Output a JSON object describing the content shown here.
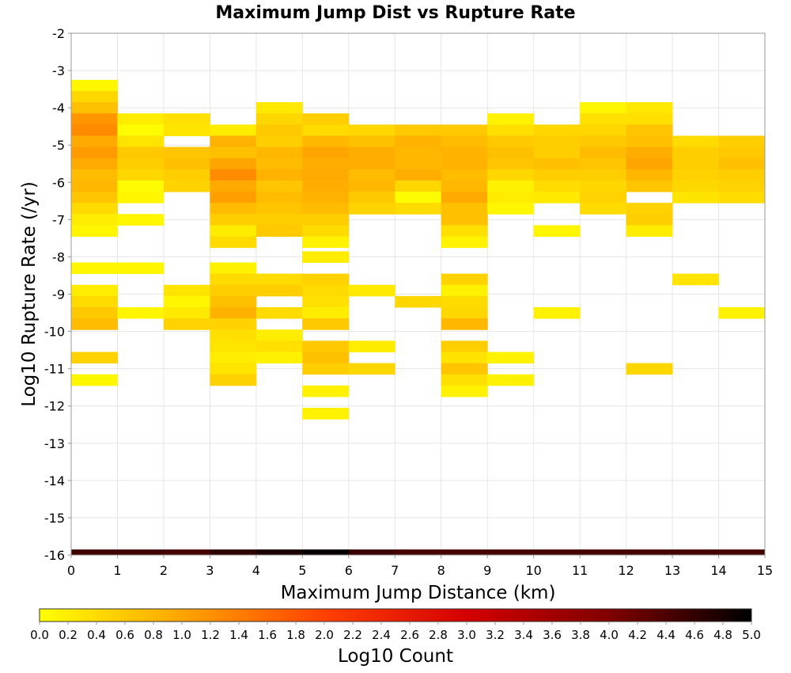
{
  "chart_data": {
    "type": "heatmap",
    "title": "Maximum Jump Dist vs Rupture Rate",
    "xlabel": "Maximum Jump Distance (km)",
    "ylabel": "Log10 Rupture Rate (/yr)",
    "xlim": [
      0,
      15
    ],
    "ylim": [
      -16,
      -2
    ],
    "x_ticks": [
      "0",
      "1",
      "2",
      "3",
      "4",
      "5",
      "6",
      "7",
      "8",
      "9",
      "10",
      "11",
      "12",
      "13",
      "14",
      "15"
    ],
    "y_ticks": [
      "-2",
      "-3",
      "-4",
      "-5",
      "-6",
      "-7",
      "-8",
      "-9",
      "-10",
      "-11",
      "-12",
      "-13",
      "-14",
      "-15",
      "-16"
    ],
    "x_bin_width": 1,
    "y_bin_width": 0.3,
    "grid": true,
    "colorbar": {
      "label": "Log10 Count",
      "range": [
        0,
        5
      ],
      "ticks": [
        "0.0",
        "0.2",
        "0.4",
        "0.6",
        "0.8",
        "1.0",
        "1.2",
        "1.4",
        "1.6",
        "1.8",
        "2.0",
        "2.2",
        "2.4",
        "2.6",
        "2.8",
        "3.0",
        "3.2",
        "3.4",
        "3.6",
        "3.8",
        "4.0",
        "4.2",
        "4.4",
        "4.6",
        "4.8",
        "5.0"
      ],
      "colors": [
        "#ffff00",
        "#ffa500",
        "#ff4000",
        "#d40000",
        "#800000",
        "#000000"
      ]
    },
    "cells": [
      [
        0,
        -3.4,
        0.1
      ],
      [
        0,
        -3.7,
        0.45
      ],
      [
        0,
        -4.0,
        0.7
      ],
      [
        0,
        -4.3,
        1.15
      ],
      [
        0,
        -4.6,
        1.25
      ],
      [
        0,
        -4.9,
        0.95
      ],
      [
        0,
        -5.2,
        1.1
      ],
      [
        0,
        -5.5,
        0.95
      ],
      [
        0,
        -5.8,
        0.75
      ],
      [
        0,
        -6.1,
        0.8
      ],
      [
        0,
        -6.4,
        0.65
      ],
      [
        0,
        -6.7,
        0.4
      ],
      [
        0,
        -7.0,
        0.2
      ],
      [
        0,
        -7.3,
        0.1
      ],
      [
        0,
        -8.3,
        0.1
      ],
      [
        0,
        -8.9,
        0.2
      ],
      [
        0,
        -9.2,
        0.4
      ],
      [
        0,
        -9.5,
        0.6
      ],
      [
        0,
        -9.8,
        0.75
      ],
      [
        0,
        -10.7,
        0.5
      ],
      [
        0,
        -11.3,
        0.1
      ],
      [
        1,
        -4.3,
        0.2
      ],
      [
        1,
        -4.6,
        0.05
      ],
      [
        1,
        -4.9,
        0.3
      ],
      [
        1,
        -5.2,
        0.6
      ],
      [
        1,
        -5.5,
        0.55
      ],
      [
        1,
        -5.8,
        0.45
      ],
      [
        1,
        -6.1,
        0.05
      ],
      [
        1,
        -6.4,
        0.1
      ],
      [
        1,
        -7.0,
        0.1
      ],
      [
        1,
        -8.3,
        0.1
      ],
      [
        1,
        -9.5,
        0.1
      ],
      [
        2,
        -4.3,
        0.35
      ],
      [
        2,
        -4.6,
        0.3
      ],
      [
        2,
        -5.2,
        0.65
      ],
      [
        2,
        -5.5,
        0.7
      ],
      [
        2,
        -5.8,
        0.55
      ],
      [
        2,
        -6.1,
        0.5
      ],
      [
        2,
        -8.9,
        0.3
      ],
      [
        2,
        -9.2,
        0.1
      ],
      [
        2,
        -9.5,
        0.25
      ],
      [
        2,
        -9.8,
        0.5
      ],
      [
        3,
        -4.6,
        0.2
      ],
      [
        3,
        -4.9,
        0.85
      ],
      [
        3,
        -5.2,
        0.7
      ],
      [
        3,
        -5.5,
        1.0
      ],
      [
        3,
        -5.8,
        1.25
      ],
      [
        3,
        -6.1,
        0.95
      ],
      [
        3,
        -6.4,
        1.05
      ],
      [
        3,
        -6.7,
        0.75
      ],
      [
        3,
        -7.0,
        0.55
      ],
      [
        3,
        -7.3,
        0.2
      ],
      [
        3,
        -7.6,
        0.4
      ],
      [
        3,
        -8.3,
        0.15
      ],
      [
        3,
        -8.6,
        0.4
      ],
      [
        3,
        -8.9,
        0.55
      ],
      [
        3,
        -9.2,
        0.7
      ],
      [
        3,
        -9.5,
        0.85
      ],
      [
        3,
        -9.8,
        0.5
      ],
      [
        3,
        -10.1,
        0.35
      ],
      [
        3,
        -10.4,
        0.3
      ],
      [
        3,
        -10.7,
        0.2
      ],
      [
        3,
        -11.0,
        0.3
      ],
      [
        3,
        -11.3,
        0.5
      ],
      [
        4,
        -4.0,
        0.25
      ],
      [
        4,
        -4.3,
        0.45
      ],
      [
        4,
        -4.6,
        0.6
      ],
      [
        4,
        -4.9,
        0.55
      ],
      [
        4,
        -5.2,
        0.8
      ],
      [
        4,
        -5.5,
        0.75
      ],
      [
        4,
        -5.8,
        0.85
      ],
      [
        4,
        -6.1,
        0.65
      ],
      [
        4,
        -6.4,
        0.75
      ],
      [
        4,
        -6.7,
        0.65
      ],
      [
        4,
        -7.0,
        0.55
      ],
      [
        4,
        -7.3,
        0.6
      ],
      [
        4,
        -8.6,
        0.4
      ],
      [
        4,
        -8.9,
        0.55
      ],
      [
        4,
        -9.5,
        0.4
      ],
      [
        4,
        -10.1,
        0.2
      ],
      [
        4,
        -10.4,
        0.35
      ],
      [
        4,
        -10.7,
        0.15
      ],
      [
        5,
        -4.3,
        0.55
      ],
      [
        5,
        -4.6,
        0.4
      ],
      [
        5,
        -4.9,
        0.8
      ],
      [
        5,
        -5.2,
        1.0
      ],
      [
        5,
        -5.5,
        0.9
      ],
      [
        5,
        -5.8,
        0.95
      ],
      [
        5,
        -6.1,
        0.9
      ],
      [
        5,
        -6.4,
        0.85
      ],
      [
        5,
        -6.7,
        0.75
      ],
      [
        5,
        -7.0,
        0.55
      ],
      [
        5,
        -7.3,
        0.4
      ],
      [
        5,
        -7.6,
        0.15
      ],
      [
        5,
        -8.0,
        0.2
      ],
      [
        5,
        -8.6,
        0.5
      ],
      [
        5,
        -8.9,
        0.4
      ],
      [
        5,
        -9.2,
        0.35
      ],
      [
        5,
        -9.5,
        0.2
      ],
      [
        5,
        -9.8,
        0.6
      ],
      [
        5,
        -10.4,
        0.6
      ],
      [
        5,
        -10.7,
        0.7
      ],
      [
        5,
        -11.0,
        0.55
      ],
      [
        5,
        -11.6,
        0.15
      ],
      [
        5,
        -12.2,
        0.15
      ],
      [
        6,
        -4.6,
        0.45
      ],
      [
        6,
        -4.9,
        0.7
      ],
      [
        6,
        -5.2,
        0.9
      ],
      [
        6,
        -5.5,
        0.9
      ],
      [
        6,
        -5.8,
        0.75
      ],
      [
        6,
        -6.1,
        0.8
      ],
      [
        6,
        -6.4,
        0.6
      ],
      [
        6,
        -6.7,
        0.5
      ],
      [
        6,
        -8.9,
        0.25
      ],
      [
        6,
        -10.4,
        0.2
      ],
      [
        6,
        -11.0,
        0.45
      ],
      [
        7,
        -4.6,
        0.6
      ],
      [
        7,
        -4.9,
        0.85
      ],
      [
        7,
        -5.2,
        0.8
      ],
      [
        7,
        -5.5,
        0.8
      ],
      [
        7,
        -5.8,
        0.9
      ],
      [
        7,
        -6.1,
        0.45
      ],
      [
        7,
        -6.4,
        0.05
      ],
      [
        7,
        -6.7,
        0.4
      ],
      [
        7,
        -9.2,
        0.45
      ],
      [
        8,
        -4.6,
        0.6
      ],
      [
        8,
        -4.9,
        0.75
      ],
      [
        8,
        -5.2,
        0.85
      ],
      [
        8,
        -5.5,
        0.85
      ],
      [
        8,
        -5.8,
        0.75
      ],
      [
        8,
        -6.1,
        0.8
      ],
      [
        8,
        -6.4,
        0.95
      ],
      [
        8,
        -6.7,
        0.7
      ],
      [
        8,
        -7.0,
        0.7
      ],
      [
        8,
        -7.3,
        0.35
      ],
      [
        8,
        -7.6,
        0.15
      ],
      [
        8,
        -8.6,
        0.5
      ],
      [
        8,
        -8.9,
        0.15
      ],
      [
        8,
        -9.2,
        0.4
      ],
      [
        8,
        -9.5,
        0.45
      ],
      [
        8,
        -9.8,
        0.8
      ],
      [
        8,
        -10.4,
        0.55
      ],
      [
        8,
        -10.7,
        0.3
      ],
      [
        8,
        -11.0,
        0.65
      ],
      [
        8,
        -11.3,
        0.35
      ],
      [
        8,
        -11.6,
        0.15
      ],
      [
        9,
        -4.3,
        0.15
      ],
      [
        9,
        -4.6,
        0.35
      ],
      [
        9,
        -4.9,
        0.6
      ],
      [
        9,
        -5.2,
        0.7
      ],
      [
        9,
        -5.5,
        0.65
      ],
      [
        9,
        -5.8,
        0.45
      ],
      [
        9,
        -6.1,
        0.15
      ],
      [
        9,
        -6.4,
        0.2
      ],
      [
        9,
        -6.7,
        0.1
      ],
      [
        9,
        -10.7,
        0.15
      ],
      [
        9,
        -11.3,
        0.15
      ],
      [
        10,
        -4.6,
        0.45
      ],
      [
        10,
        -4.9,
        0.55
      ],
      [
        10,
        -5.2,
        0.55
      ],
      [
        10,
        -5.5,
        0.7
      ],
      [
        10,
        -5.8,
        0.55
      ],
      [
        10,
        -6.1,
        0.4
      ],
      [
        10,
        -6.4,
        0.25
      ],
      [
        10,
        -7.3,
        0.1
      ],
      [
        10,
        -9.5,
        0.15
      ],
      [
        11,
        -4.0,
        0.1
      ],
      [
        11,
        -4.3,
        0.35
      ],
      [
        11,
        -4.6,
        0.45
      ],
      [
        11,
        -4.9,
        0.6
      ],
      [
        11,
        -5.2,
        0.75
      ],
      [
        11,
        -5.5,
        0.65
      ],
      [
        11,
        -5.8,
        0.55
      ],
      [
        11,
        -6.1,
        0.45
      ],
      [
        11,
        -6.4,
        0.5
      ],
      [
        11,
        -6.7,
        0.4
      ],
      [
        12,
        -4.0,
        0.25
      ],
      [
        12,
        -4.3,
        0.35
      ],
      [
        12,
        -4.6,
        0.65
      ],
      [
        12,
        -4.9,
        0.7
      ],
      [
        12,
        -5.2,
        0.9
      ],
      [
        12,
        -5.5,
        1.0
      ],
      [
        12,
        -5.8,
        0.8
      ],
      [
        12,
        -6.1,
        0.65
      ],
      [
        12,
        -6.7,
        0.5
      ],
      [
        12,
        -7.0,
        0.55
      ],
      [
        12,
        -7.3,
        0.2
      ],
      [
        12,
        -11.0,
        0.45
      ],
      [
        13,
        -4.9,
        0.4
      ],
      [
        13,
        -5.2,
        0.55
      ],
      [
        13,
        -5.5,
        0.55
      ],
      [
        13,
        -5.8,
        0.5
      ],
      [
        13,
        -6.1,
        0.45
      ],
      [
        13,
        -6.4,
        0.3
      ],
      [
        13,
        -8.6,
        0.3
      ],
      [
        14,
        -4.9,
        0.55
      ],
      [
        14,
        -5.2,
        0.6
      ],
      [
        14,
        -5.5,
        0.7
      ],
      [
        14,
        -5.8,
        0.55
      ],
      [
        14,
        -6.1,
        0.5
      ],
      [
        14,
        -6.4,
        0.4
      ],
      [
        14,
        -9.5,
        0.15
      ]
    ],
    "bottom_row": {
      "y": -16,
      "values": [
        4.5,
        4.5,
        4.45,
        4.65,
        4.8,
        4.95,
        4.55,
        4.45,
        4.45,
        4.45,
        4.45,
        4.45,
        4.45,
        4.45,
        4.45
      ]
    }
  }
}
